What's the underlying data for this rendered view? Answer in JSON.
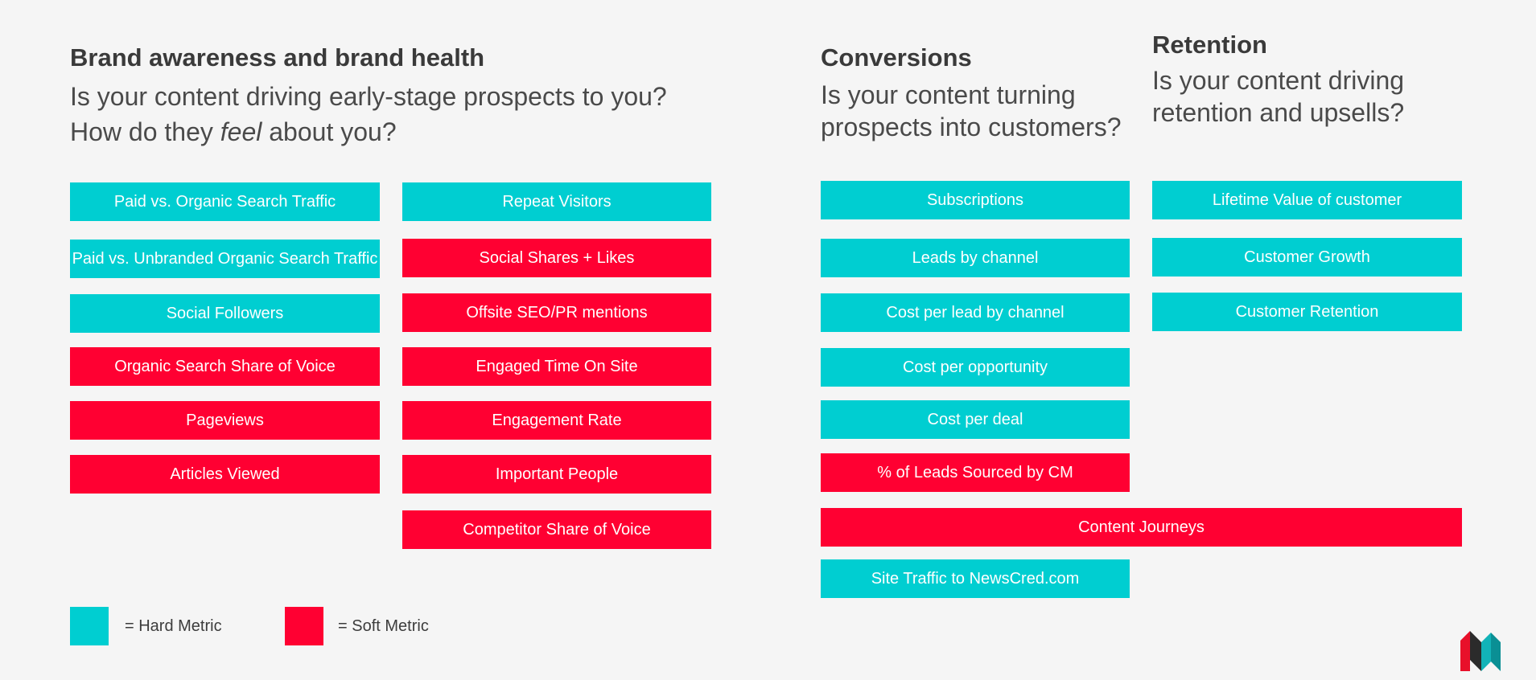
{
  "colors": {
    "hard": "#00ced1",
    "soft": "#ff0032",
    "background": "#f5f5f5"
  },
  "brand": {
    "heading": "Brand awareness and brand health",
    "subtitle_line1": "Is your content driving early-stage prospects to you?",
    "subtitle_line2_before": "How do they ",
    "subtitle_line2_emph": "feel",
    "subtitle_line2_after": " about you?",
    "column1": [
      {
        "label": "Paid vs. Organic Search Traffic",
        "kind": "hard"
      },
      {
        "label": "Paid vs. Unbranded Organic Search Traffic",
        "kind": "hard"
      },
      {
        "label": "Social Followers",
        "kind": "hard"
      },
      {
        "label": "Organic Search Share of Voice",
        "kind": "soft"
      },
      {
        "label": "Pageviews",
        "kind": "soft"
      },
      {
        "label": "Articles Viewed",
        "kind": "soft"
      }
    ],
    "column2": [
      {
        "label": "Repeat Visitors",
        "kind": "hard"
      },
      {
        "label": "Social Shares + Likes",
        "kind": "soft"
      },
      {
        "label": "Offsite SEO/PR mentions",
        "kind": "soft"
      },
      {
        "label": "Engaged Time On Site",
        "kind": "soft"
      },
      {
        "label": "Engagement Rate",
        "kind": "soft"
      },
      {
        "label": "Important People",
        "kind": "soft"
      },
      {
        "label": "Competitor Share of Voice",
        "kind": "soft"
      }
    ]
  },
  "conversions": {
    "heading": "Conversions",
    "subtitle_line1": "Is your content turning",
    "subtitle_line2": "prospects into customers?",
    "items": [
      {
        "label": "Subscriptions",
        "kind": "hard"
      },
      {
        "label": "Leads by channel",
        "kind": "hard"
      },
      {
        "label": "Cost per lead by channel",
        "kind": "hard"
      },
      {
        "label": "Cost per opportunity",
        "kind": "hard"
      },
      {
        "label": "Cost per deal",
        "kind": "hard"
      },
      {
        "label": "% of Leads Sourced by CM",
        "kind": "soft"
      }
    ],
    "wide_item": {
      "label": "Content Journeys",
      "kind": "soft"
    },
    "last_item": {
      "label": "Site Traffic to NewsCred.com",
      "kind": "hard"
    }
  },
  "retention": {
    "heading": "Retention",
    "subtitle_line1": "Is your content driving",
    "subtitle_line2": "retention and upsells?",
    "items": [
      {
        "label": "Lifetime Value of customer",
        "kind": "hard"
      },
      {
        "label": "Customer Growth",
        "kind": "hard"
      },
      {
        "label": "Customer Retention",
        "kind": "hard"
      }
    ]
  },
  "legend": {
    "hard_label": "=   Hard Metric",
    "soft_label": "=   Soft Metric"
  },
  "logo_icon": "newscred-logo-icon"
}
